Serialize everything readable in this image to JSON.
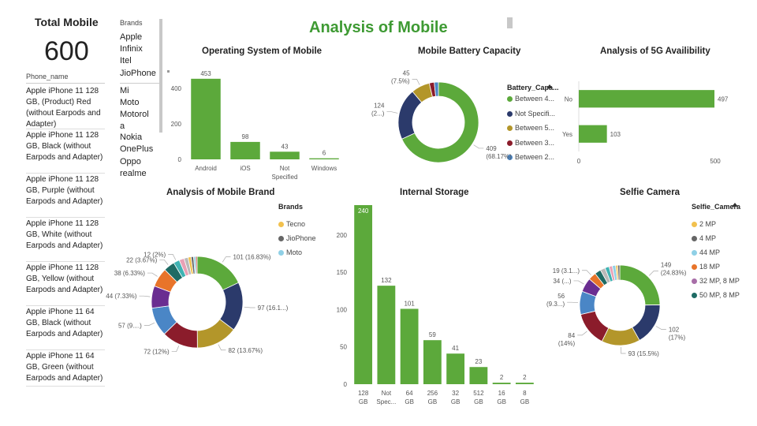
{
  "kpi": {
    "title": "Total Mobile",
    "value": "600"
  },
  "table": {
    "header": "Phone_name",
    "rows": [
      "Apple iPhone 11 128 GB, (Product) Red (without Earpods and Adapter)",
      "Apple iPhone 11 128 GB, Black (without Earpods and Adapter)",
      "Apple iPhone 11 128 GB, Purple (without Earpods and Adapter)",
      "Apple iPhone 11 128 GB, White (without Earpods and Adapter)",
      "Apple iPhone 11 128 GB, Yellow (without Earpods and Adapter)",
      "Apple iPhone 11 64 GB, Black (without Earpods and Adapter)",
      "Apple iPhone 11 64 GB, Green (without Earpods and Adapter)"
    ]
  },
  "slicer": {
    "title": "Brands",
    "items": [
      "Apple",
      "Infinix",
      "Itel",
      "JioPhone",
      "Mi",
      "Moto",
      "Motorola",
      "Nokia",
      "OnePlus",
      "Oppo",
      "realme"
    ]
  },
  "page_title": "Analysis of Mobile",
  "colors": {
    "accent": "#5ca93b",
    "title": "#3e9a33"
  },
  "chart_data": [
    {
      "id": "os",
      "type": "bar",
      "title": "Operating System of Mobile",
      "categories": [
        "Android",
        "iOS",
        "Not Specified",
        "Windows"
      ],
      "values": [
        453,
        98,
        43,
        6
      ],
      "ylim": [
        0,
        470
      ],
      "yticks": [
        0,
        200,
        400
      ],
      "color": "#5ca93b"
    },
    {
      "id": "battery",
      "type": "pie",
      "title": "Mobile Battery Capacity",
      "legend_title": "Battery_Capa...",
      "legend": [
        "Between 4...",
        "Not Specifi...",
        "Between 5...",
        "Between 3...",
        "Between 2..."
      ],
      "slices": [
        {
          "value": 409,
          "color": "#5ca93b",
          "label": "409",
          "pct": "(68.17%)"
        },
        {
          "value": 124,
          "color": "#2b3a6b",
          "label": "124",
          "pct": "(2...)"
        },
        {
          "value": 45,
          "color": "#b3962a",
          "label": "45",
          "pct": "(7.5%)"
        },
        {
          "value": 12,
          "color": "#8b1c2b",
          "label": "",
          "pct": ""
        },
        {
          "value": 10,
          "color": "#4a86c6",
          "label": "",
          "pct": ""
        }
      ]
    },
    {
      "id": "fiveg",
      "type": "bar",
      "orientation": "horizontal",
      "title": "Analysis of 5G Availibility",
      "categories": [
        "No",
        "Yes"
      ],
      "values": [
        497,
        103
      ],
      "xlim": [
        0,
        520
      ],
      "xticks": [
        0,
        500
      ],
      "color": "#5ca93b"
    },
    {
      "id": "brand",
      "type": "pie",
      "title": "Analysis of Mobile Brand",
      "legend_title": "Brands",
      "legend": [
        {
          "name": "Tecno",
          "color": "#f2c14e"
        },
        {
          "name": "JioPhone",
          "color": "#666666"
        },
        {
          "name": "Moto",
          "color": "#8fd0e6"
        }
      ],
      "slices": [
        {
          "value": 101,
          "color": "#5ca93b",
          "label": "101 (16.83%)"
        },
        {
          "value": 97,
          "color": "#2b3a6b",
          "label": "97 (16.1...)"
        },
        {
          "value": 82,
          "color": "#b3962a",
          "label": "82 (13.67%)"
        },
        {
          "value": 72,
          "color": "#8b1c2b",
          "label": "72 (12%)"
        },
        {
          "value": 57,
          "color": "#4a86c6",
          "label": "57 (9....)"
        },
        {
          "value": 44,
          "color": "#6a2d91",
          "label": "44 (7.33%)"
        },
        {
          "value": 38,
          "color": "#e8742a",
          "label": "38 (6.33%)"
        },
        {
          "value": 22,
          "color": "#1e6b64",
          "label": "22 (3.67%)"
        },
        {
          "value": 12,
          "color": "#3fb3b3",
          "label": "12 (2%)"
        },
        {
          "value": 10,
          "color": "#e9a1b5",
          "label": ""
        },
        {
          "value": 8,
          "color": "#b9b9b9",
          "label": ""
        },
        {
          "value": 6,
          "color": "#f2c14e",
          "label": ""
        },
        {
          "value": 5,
          "color": "#666666",
          "label": ""
        },
        {
          "value": 4,
          "color": "#8fd0e6",
          "label": ""
        },
        {
          "value": 3,
          "color": "#c0504d",
          "label": ""
        }
      ]
    },
    {
      "id": "storage",
      "type": "bar",
      "title": "Internal Storage",
      "categories": [
        "128 GB",
        "Not Spec...",
        "64 GB",
        "256 GB",
        "32 GB",
        "512 GB",
        "16 GB",
        "8 GB"
      ],
      "values": [
        240,
        132,
        101,
        59,
        41,
        23,
        2,
        2
      ],
      "ylim": [
        0,
        240
      ],
      "yticks": [
        0,
        50,
        100,
        150,
        200
      ],
      "color": "#5ca93b"
    },
    {
      "id": "selfie",
      "type": "pie",
      "title": "Selfie Camera",
      "legend_title": "Selfie_Camera",
      "legend": [
        {
          "name": "2 MP",
          "color": "#f2c14e"
        },
        {
          "name": "4 MP",
          "color": "#666666"
        },
        {
          "name": "44 MP",
          "color": "#8fd0e6"
        },
        {
          "name": "18 MP",
          "color": "#e8742a"
        },
        {
          "name": "32 MP, 8 MP",
          "color": "#a86ea8"
        },
        {
          "name": "50 MP, 8 MP",
          "color": "#1e6b64"
        }
      ],
      "slices": [
        {
          "value": 149,
          "color": "#5ca93b",
          "label": "149",
          "pct": "(24.83%)"
        },
        {
          "value": 102,
          "color": "#2b3a6b",
          "label": "102",
          "pct": "(17%)"
        },
        {
          "value": 93,
          "color": "#b3962a",
          "label": "93 (15.5%)",
          "pct": ""
        },
        {
          "value": 84,
          "color": "#8b1c2b",
          "label": "84",
          "pct": "(14%)"
        },
        {
          "value": 56,
          "color": "#4a86c6",
          "label": "56",
          "pct": "(9.3...)"
        },
        {
          "value": 34,
          "color": "#6a2d91",
          "label": "34 (...)",
          "pct": ""
        },
        {
          "value": 19,
          "color": "#e8742a",
          "label": "19 (3.1...)",
          "pct": ""
        },
        {
          "value": 15,
          "color": "#1e6b64",
          "label": "",
          "pct": ""
        },
        {
          "value": 12,
          "color": "#b9b9b9",
          "label": "",
          "pct": ""
        },
        {
          "value": 10,
          "color": "#3fb3b3",
          "label": "",
          "pct": ""
        },
        {
          "value": 8,
          "color": "#e9a1b5",
          "label": "",
          "pct": ""
        },
        {
          "value": 8,
          "color": "#8fd0e6",
          "label": "",
          "pct": ""
        },
        {
          "value": 5,
          "color": "#f2c14e",
          "label": "",
          "pct": ""
        },
        {
          "value": 5,
          "color": "#666666",
          "label": "",
          "pct": ""
        }
      ]
    }
  ]
}
